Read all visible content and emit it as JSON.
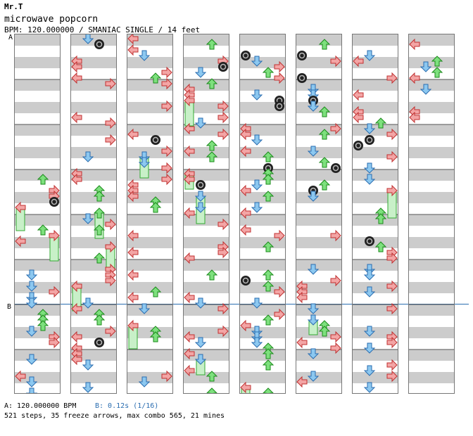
{
  "header": {
    "artist": "Mr.T",
    "title": "microwave popcorn",
    "info": "BPM: 120.000000 / SMANIAC SINGLE / 14 feet"
  },
  "markers": {
    "a": "A",
    "b": "B"
  },
  "footer": {
    "bpm_a": "A: 120.000000 BPM",
    "bpm_b": "B: 0.12s (1/16)",
    "stats": "521 steps, 35 freeze arrows, max combo 565, 21 mines"
  },
  "chart": {
    "columns": 8,
    "lanes": [
      "left",
      "down",
      "up",
      "right"
    ],
    "colors": {
      "left": "#f3a5a5",
      "down": "#8cc8f0",
      "up": "#7de07d",
      "right": "#f3a5a5",
      "freeze": "#c8f0c8",
      "mine": "#222222",
      "stripe": "#cccccc"
    }
  }
}
